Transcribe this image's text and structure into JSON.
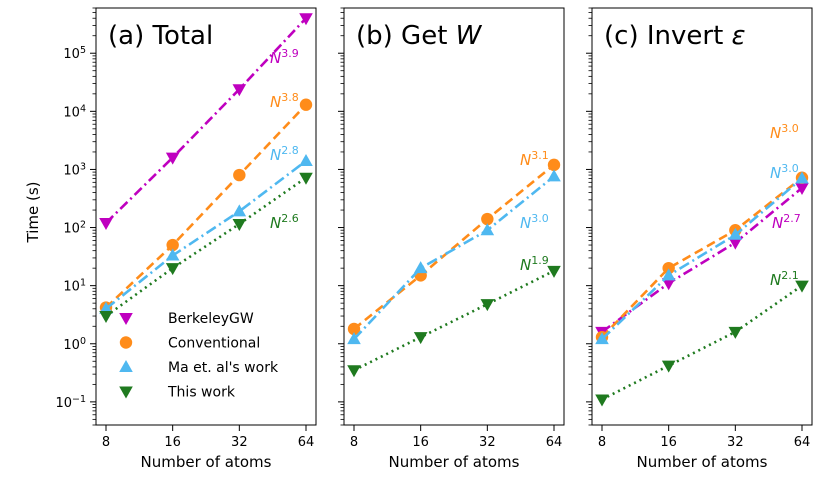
{
  "figure": {
    "ylabel": "Time (s)",
    "xlabel": "Number of atoms",
    "colors": {
      "berkeleygw": "#BF00BF",
      "conventional": "#FF8C1A",
      "ma": "#4FB8F0",
      "thiswork": "#1F7A1F"
    }
  },
  "chart_data": [
    {
      "type": "line",
      "title": "(a) Total",
      "xlabel": "Number of atoms",
      "ylabel": "Time (s)",
      "xscale": "log2",
      "yscale": "log10",
      "x_ticks": [
        8,
        16,
        32,
        64
      ],
      "ylim": [
        0.04,
        600000
      ],
      "y_ticks": [
        "10^-1",
        "10^0",
        "10^1",
        "10^2",
        "10^3",
        "10^4",
        "10^5"
      ],
      "legend_position": "lower-right",
      "series": [
        {
          "key": "berkeleygw",
          "name": "BerkeleyGW",
          "x": [
            8,
            16,
            32,
            64
          ],
          "values": [
            120,
            1600,
            24000,
            400000
          ],
          "scaling": "N^3.9"
        },
        {
          "key": "conventional",
          "name": "Conventional",
          "x": [
            8,
            16,
            32,
            64
          ],
          "values": [
            4.2,
            50,
            800,
            13000
          ],
          "scaling": "N^3.8"
        },
        {
          "key": "ma",
          "name": "Ma et. al's work",
          "x": [
            8,
            16,
            32,
            64
          ],
          "values": [
            4.0,
            33,
            190,
            1400
          ],
          "scaling": "N^2.8"
        },
        {
          "key": "thiswork",
          "name": "This work",
          "x": [
            8,
            16,
            32,
            64
          ],
          "values": [
            3.0,
            20,
            115,
            720
          ],
          "scaling": "N^2.6"
        }
      ]
    },
    {
      "type": "line",
      "title_prefix": "(b) Get ",
      "title_var": "W",
      "xlabel": "Number of atoms",
      "xscale": "log2",
      "yscale": "log10",
      "x_ticks": [
        8,
        16,
        32,
        64
      ],
      "series": [
        {
          "key": "conventional",
          "name": "Conventional",
          "x": [
            8,
            16,
            32,
            64
          ],
          "values": [
            1.8,
            15,
            140,
            1200
          ],
          "scaling": "N^3.1"
        },
        {
          "key": "ma",
          "name": "Ma et. al's work",
          "x": [
            8,
            16,
            32,
            64
          ],
          "values": [
            1.2,
            20,
            90,
            760
          ],
          "scaling": "N^3.0"
        },
        {
          "key": "thiswork",
          "name": "This work",
          "x": [
            8,
            16,
            32,
            64
          ],
          "values": [
            0.35,
            1.3,
            4.8,
            18
          ],
          "scaling": "N^1.9"
        }
      ]
    },
    {
      "type": "line",
      "title_prefix": "(c) Invert ",
      "title_var": "ε",
      "xlabel": "Number of atoms",
      "xscale": "log2",
      "yscale": "log10",
      "x_ticks": [
        8,
        16,
        32,
        64
      ],
      "series": [
        {
          "key": "berkeleygw",
          "name": "BerkeleyGW",
          "x": [
            8,
            16,
            32,
            64
          ],
          "values": [
            1.6,
            11,
            55,
            480
          ],
          "scaling": "N^2.7"
        },
        {
          "key": "conventional",
          "name": "Conventional",
          "x": [
            8,
            16,
            32,
            64
          ],
          "values": [
            1.3,
            20,
            90,
            720
          ],
          "scaling": "N^3.0"
        },
        {
          "key": "ma",
          "name": "Ma et. al's work",
          "x": [
            8,
            16,
            32,
            64
          ],
          "values": [
            1.2,
            15,
            75,
            700
          ],
          "scaling": "N^3.0"
        },
        {
          "key": "thiswork",
          "name": "This work",
          "x": [
            8,
            16,
            32,
            64
          ],
          "values": [
            0.11,
            0.42,
            1.6,
            10
          ],
          "scaling": "N^2.1"
        }
      ]
    }
  ]
}
